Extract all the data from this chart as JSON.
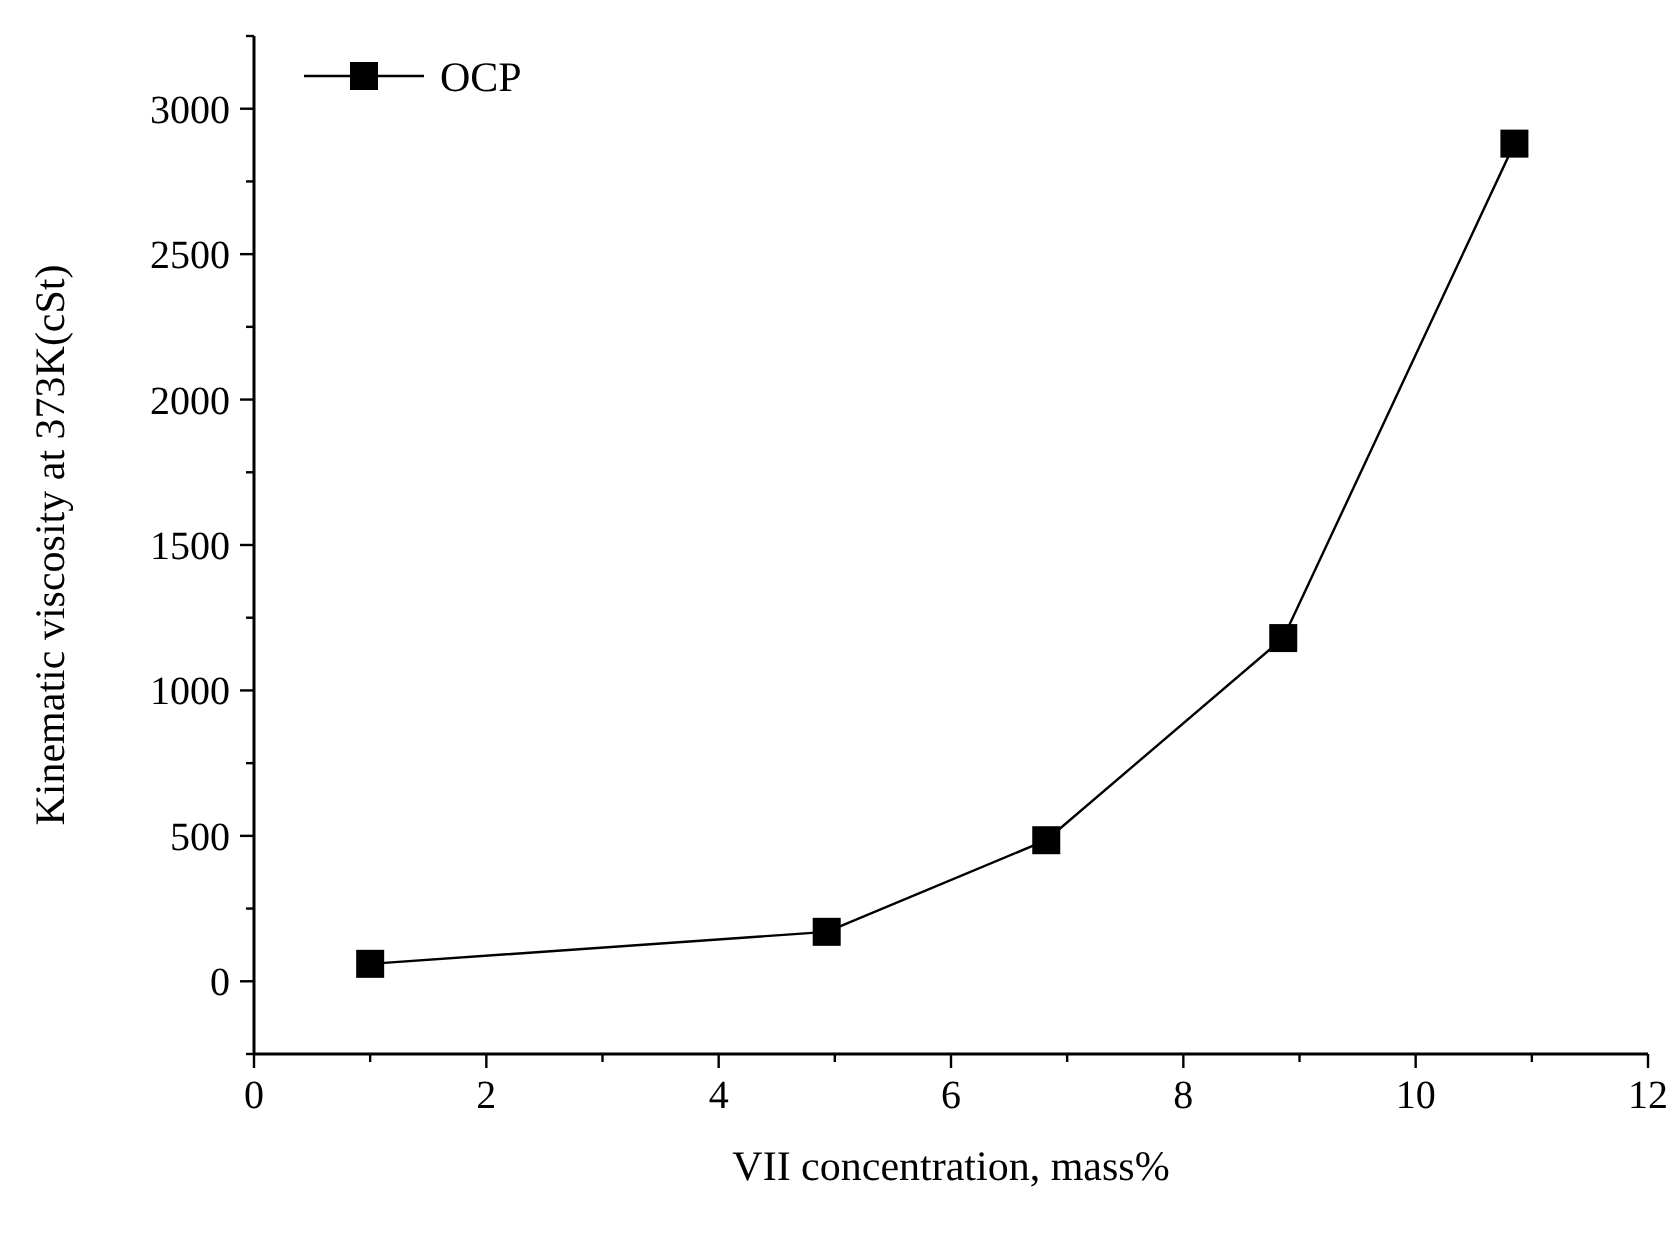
{
  "chart_data": {
    "type": "line",
    "xlabel": "VII concentration, mass%",
    "ylabel": "Kinematic viscosity at 373K(cSt)",
    "x": [
      1,
      4.93,
      6.82,
      8.86,
      10.85
    ],
    "series": [
      {
        "name": "OCP",
        "color": "#000000",
        "values": [
          60,
          170,
          485,
          1180,
          2880
        ]
      }
    ],
    "xlim": [
      0,
      12
    ],
    "xticks": [
      0,
      {
        "value": 1,
        "label": null
      },
      2,
      {
        "value": 3,
        "label": null
      },
      4,
      {
        "value": 5,
        "label": null
      },
      6,
      {
        "value": 7,
        "label": null
      },
      8,
      {
        "value": 9,
        "label": null
      },
      10,
      {
        "value": 11,
        "label": null
      },
      12
    ],
    "ylim": [
      -250,
      3250
    ],
    "yticks": [
      {
        "value": -250,
        "label": null
      },
      0,
      {
        "value": 250,
        "label": null
      },
      500,
      {
        "value": 750,
        "label": null
      },
      1000,
      {
        "value": 1250,
        "label": null
      },
      1500,
      {
        "value": 1750,
        "label": null
      },
      2000,
      {
        "value": 2250,
        "label": null
      },
      2500,
      {
        "value": 2750,
        "label": null
      },
      3000,
      {
        "value": 3250,
        "label": null
      }
    ],
    "marker": "square",
    "line_style": "solid",
    "legend": "top left",
    "grid": false
  }
}
